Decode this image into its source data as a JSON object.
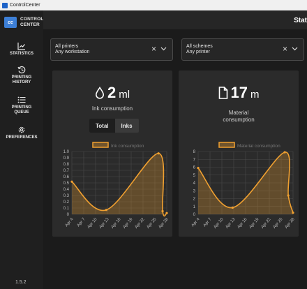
{
  "window": {
    "title": "ControlCenter"
  },
  "logo": {
    "initials": "cc",
    "line1": "CONTROL",
    "line2": "CENTER"
  },
  "sidebar": {
    "items": [
      {
        "label1": "STATISTICS",
        "label2": ""
      },
      {
        "label1": "PRINTING",
        "label2": "HISTORY"
      },
      {
        "label1": "PRINTING",
        "label2": "QUEUE"
      },
      {
        "label1": "PREFERENCES",
        "label2": ""
      }
    ],
    "version": "1.5.2"
  },
  "header": {
    "title": "Stat"
  },
  "filters": [
    {
      "line1": "All printers",
      "line2": "Any workstation"
    },
    {
      "line1": "All schemes",
      "line2": "Any printer"
    }
  ],
  "ink_card": {
    "value": "2",
    "unit": "ml",
    "label": "Ink consumption",
    "tabs": [
      {
        "label": "Total",
        "active": true
      },
      {
        "label": "Inks",
        "active": false
      }
    ]
  },
  "material_card": {
    "value": "17",
    "unit": "m",
    "label_line1": "Material",
    "label_line2": "consumption"
  },
  "chart_data": [
    {
      "type": "area",
      "legend": "Ink consumption",
      "legend_position": "top",
      "x": [
        "Apr 4",
        "Apr 7",
        "Apr 10",
        "Apr 13",
        "Apr 16",
        "Apr 19",
        "Apr 22",
        "Apr 25",
        "Apr 28"
      ],
      "yticks": [
        "0",
        "0.1",
        "0.2",
        "0.3",
        "0.4",
        "0.5",
        "0.6",
        "0.7",
        "0.8",
        "0.9",
        "1.0"
      ],
      "ylim": [
        0,
        1.0
      ],
      "points": [
        [
          0,
          0.52
        ],
        [
          2.9,
          0.07
        ],
        [
          7.3,
          0.97
        ],
        [
          7.65,
          0.05
        ],
        [
          8,
          0.02
        ]
      ],
      "color": "#f0a030"
    },
    {
      "type": "area",
      "legend": "Material consumption",
      "legend_position": "top",
      "x": [
        "Apr 4",
        "Apr 7",
        "Apr 10",
        "Apr 13",
        "Apr 16",
        "Apr 19",
        "Apr 22",
        "Apr 25",
        "Apr 28"
      ],
      "yticks": [
        "0",
        "1",
        "2",
        "3",
        "4",
        "5",
        "6",
        "7",
        "8"
      ],
      "ylim": [
        0,
        8
      ],
      "points": [
        [
          0,
          5.9
        ],
        [
          2.9,
          0.85
        ],
        [
          7.3,
          7.9
        ],
        [
          7.6,
          2.4
        ],
        [
          8,
          0.2
        ]
      ],
      "color": "#f0a030"
    }
  ]
}
